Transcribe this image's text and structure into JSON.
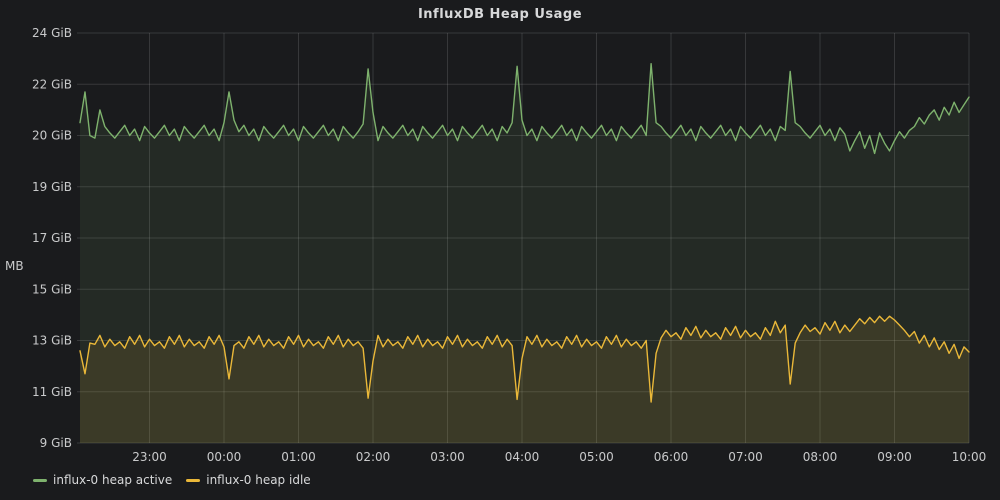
{
  "panel": {
    "title": "InfluxDB Heap Usage"
  },
  "colors": {
    "background": "#1a1b1d",
    "grid": "rgba(255,255,255,0.13)",
    "tick_text": "#c9cacb",
    "title_text": "#d8d9da",
    "heap_active": "#7EB26D",
    "heap_idle": "#EAB839"
  },
  "legend": {
    "items": [
      {
        "label": "influx-0 heap active",
        "color": "#7EB26D"
      },
      {
        "label": "influx-0 heap idle",
        "color": "#EAB839"
      }
    ]
  },
  "chart_data": {
    "type": "line",
    "title": "InfluxDB Heap Usage",
    "ylabel": "MB",
    "value_unit": "GiB",
    "y_range": [
      9,
      24
    ],
    "grid": true,
    "legend_position": "bottom-left",
    "y_tick_labels": [
      "24 GiB",
      "22 GiB",
      "20 GiB",
      "19 GiB",
      "17 GiB",
      "15 GiB",
      "13 GiB",
      "11 GiB",
      "9 GiB"
    ],
    "y_tick_values": [
      24,
      22,
      20,
      19,
      17,
      15,
      13,
      11,
      9
    ],
    "x_tick_labels": [
      "23:00",
      "00:00",
      "01:00",
      "02:00",
      "03:00",
      "04:00",
      "05:00",
      "06:00",
      "07:00",
      "08:00",
      "09:00",
      "10:00"
    ],
    "x_tick_minutes": [
      56,
      116,
      176,
      236,
      296,
      356,
      416,
      476,
      536,
      596,
      656,
      716
    ],
    "time_start": "22:04",
    "time_end": "10:00",
    "step_minutes": 4,
    "duration_minutes": 716,
    "series": [
      {
        "name": "influx-0 heap active",
        "color": "#7EB26D",
        "fill_opacity": 0.1,
        "values": [
          20.5,
          21.7,
          20.0,
          19.95,
          21.0,
          20.35,
          20.1,
          19.95,
          20.15,
          20.4,
          20.0,
          20.25,
          19.9,
          20.35,
          20.1,
          19.95,
          20.15,
          20.4,
          20.0,
          20.25,
          19.9,
          20.35,
          20.1,
          19.95,
          20.15,
          20.4,
          20.0,
          20.25,
          19.9,
          20.5,
          21.7,
          20.6,
          20.15,
          20.4,
          20.0,
          20.25,
          19.9,
          20.35,
          20.1,
          19.95,
          20.15,
          20.4,
          20.0,
          20.25,
          19.9,
          20.35,
          20.1,
          19.95,
          20.15,
          20.4,
          20.0,
          20.25,
          19.9,
          20.35,
          20.1,
          19.95,
          20.15,
          20.45,
          22.6,
          20.9,
          19.9,
          20.35,
          20.1,
          19.95,
          20.15,
          20.4,
          20.0,
          20.25,
          19.9,
          20.35,
          20.1,
          19.95,
          20.15,
          20.4,
          20.0,
          20.25,
          19.9,
          20.35,
          20.1,
          19.95,
          20.15,
          20.4,
          20.0,
          20.25,
          19.9,
          20.35,
          20.1,
          20.5,
          22.7,
          20.6,
          20.0,
          20.25,
          19.9,
          20.35,
          20.1,
          19.95,
          20.15,
          20.4,
          20.0,
          20.25,
          19.9,
          20.35,
          20.1,
          19.95,
          20.15,
          20.4,
          20.0,
          20.25,
          19.9,
          20.35,
          20.1,
          19.95,
          20.15,
          20.4,
          20.0,
          22.8,
          20.5,
          20.35,
          20.1,
          19.95,
          20.15,
          20.4,
          20.0,
          20.25,
          19.9,
          20.35,
          20.1,
          19.95,
          20.15,
          20.4,
          20.0,
          20.25,
          19.9,
          20.35,
          20.1,
          19.95,
          20.15,
          20.4,
          20.0,
          20.25,
          19.9,
          20.35,
          20.2,
          22.5,
          20.5,
          20.35,
          20.1,
          19.95,
          20.15,
          20.4,
          20.0,
          20.25,
          19.9,
          20.3,
          20.05,
          19.7,
          19.9,
          20.15,
          19.75,
          20.0,
          19.65,
          20.1,
          19.85,
          19.7,
          19.9,
          20.15,
          19.95,
          20.2,
          20.35,
          20.7,
          20.45,
          20.8,
          21.0,
          20.6,
          21.1,
          20.8,
          21.3,
          20.9,
          21.2,
          21.5
        ]
      },
      {
        "name": "influx-0 heap idle",
        "color": "#EAB839",
        "fill_opacity": 0.12,
        "values": [
          12.6,
          11.7,
          12.9,
          12.85,
          13.2,
          12.75,
          13.05,
          12.8,
          12.95,
          12.7,
          13.15,
          12.85,
          13.2,
          12.75,
          13.05,
          12.8,
          12.95,
          12.7,
          13.15,
          12.85,
          13.2,
          12.75,
          13.05,
          12.8,
          12.95,
          12.7,
          13.15,
          12.85,
          13.2,
          12.75,
          11.5,
          12.8,
          12.95,
          12.7,
          13.15,
          12.85,
          13.2,
          12.75,
          13.05,
          12.8,
          12.95,
          12.7,
          13.15,
          12.85,
          13.2,
          12.75,
          13.05,
          12.8,
          12.95,
          12.7,
          13.15,
          12.85,
          13.2,
          12.75,
          13.05,
          12.8,
          12.95,
          12.7,
          10.75,
          12.2,
          13.2,
          12.75,
          13.05,
          12.8,
          12.95,
          12.7,
          13.15,
          12.85,
          13.2,
          12.75,
          13.05,
          12.8,
          12.95,
          12.7,
          13.15,
          12.85,
          13.2,
          12.75,
          13.05,
          12.8,
          12.95,
          12.7,
          13.15,
          12.85,
          13.2,
          12.75,
          13.05,
          12.8,
          10.7,
          12.3,
          13.15,
          12.85,
          13.2,
          12.75,
          13.05,
          12.8,
          12.95,
          12.7,
          13.15,
          12.85,
          13.2,
          12.75,
          13.05,
          12.8,
          12.95,
          12.7,
          13.15,
          12.85,
          13.2,
          12.75,
          13.05,
          12.8,
          12.95,
          12.7,
          13.0,
          10.6,
          12.5,
          13.1,
          13.4,
          13.15,
          13.3,
          13.05,
          13.5,
          13.2,
          13.55,
          13.1,
          13.4,
          13.15,
          13.3,
          13.05,
          13.5,
          13.2,
          13.55,
          13.1,
          13.4,
          13.15,
          13.3,
          13.05,
          13.5,
          13.2,
          13.75,
          13.3,
          13.6,
          11.3,
          12.9,
          13.3,
          13.6,
          13.35,
          13.5,
          13.25,
          13.7,
          13.4,
          13.75,
          13.3,
          13.6,
          13.35,
          13.6,
          13.85,
          13.65,
          13.9,
          13.7,
          13.95,
          13.75,
          13.95,
          13.8,
          13.6,
          13.4,
          13.15,
          13.35,
          12.9,
          13.2,
          12.75,
          13.1,
          12.65,
          12.95,
          12.5,
          12.85,
          12.3,
          12.75,
          12.55
        ]
      }
    ]
  }
}
